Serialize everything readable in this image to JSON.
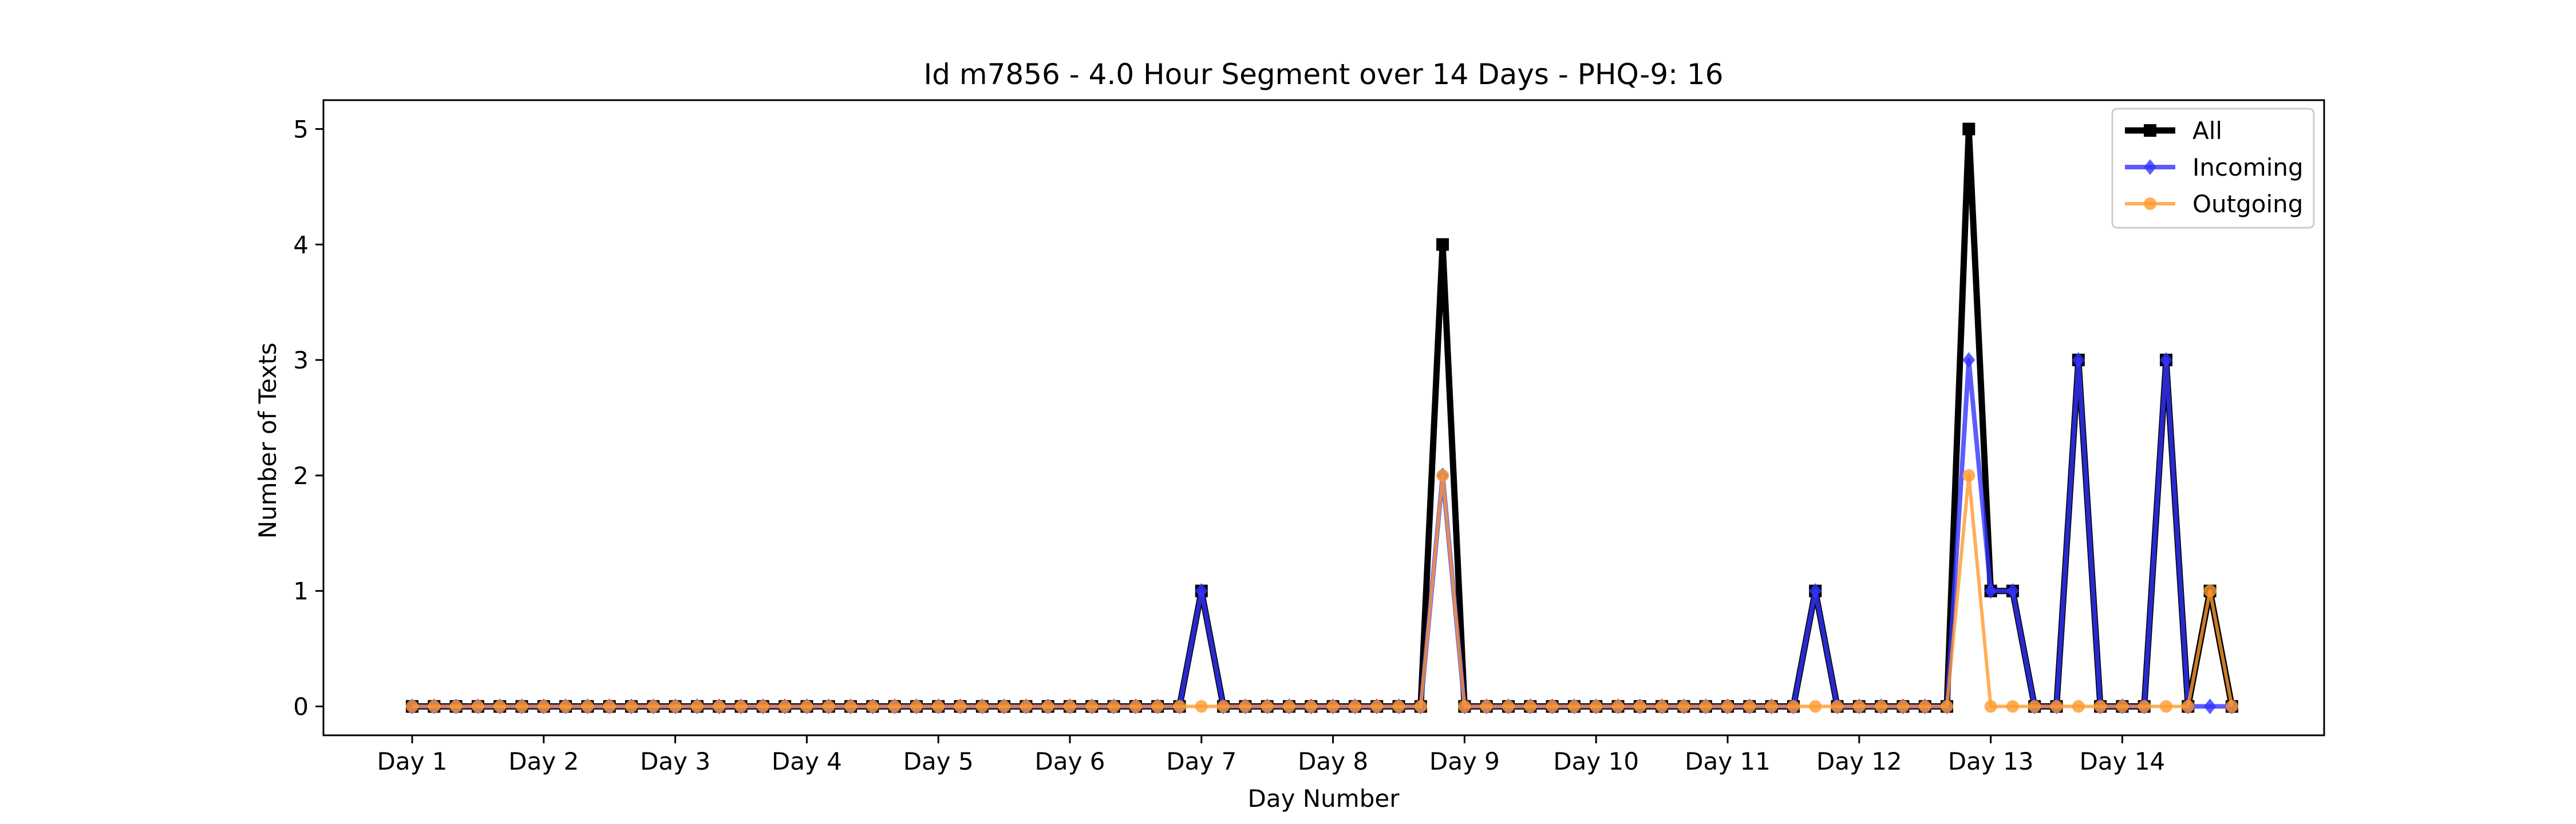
{
  "chart_data": {
    "type": "line",
    "title": "Id m7856 - 4.0 Hour Segment over 14 Days - PHQ-9: 16",
    "xlabel": "Day Number",
    "ylabel": "Number of Texts",
    "x_tick_labels": [
      "Day 1",
      "Day 2",
      "Day 3",
      "Day 4",
      "Day 5",
      "Day 6",
      "Day 7",
      "Day 8",
      "Day 9",
      "Day 10",
      "Day 11",
      "Day 12",
      "Day 13",
      "Day 14"
    ],
    "y_ticks": [
      0,
      1,
      2,
      3,
      4,
      5
    ],
    "ylim": [
      -0.25,
      5.25
    ],
    "legend_position": "top-right",
    "grid": false,
    "series": [
      {
        "name": "All",
        "color": "#000000",
        "marker": "square",
        "values": [
          0,
          0,
          0,
          0,
          0,
          0,
          0,
          0,
          0,
          0,
          0,
          0,
          0,
          0,
          0,
          0,
          0,
          0,
          0,
          0,
          0,
          0,
          0,
          0,
          0,
          0,
          0,
          0,
          0,
          0,
          0,
          0,
          0,
          0,
          0,
          0,
          1,
          0,
          0,
          0,
          0,
          0,
          0,
          0,
          0,
          0,
          0,
          4,
          0,
          0,
          0,
          0,
          0,
          0,
          0,
          0,
          0,
          0,
          0,
          0,
          0,
          0,
          0,
          0,
          1,
          0,
          0,
          0,
          0,
          0,
          0,
          5,
          1,
          1,
          0,
          0,
          3,
          0,
          0,
          0,
          3,
          0,
          1,
          0
        ]
      },
      {
        "name": "Incoming",
        "color": "#3333ff",
        "marker": "diamond",
        "values": [
          0,
          0,
          0,
          0,
          0,
          0,
          0,
          0,
          0,
          0,
          0,
          0,
          0,
          0,
          0,
          0,
          0,
          0,
          0,
          0,
          0,
          0,
          0,
          0,
          0,
          0,
          0,
          0,
          0,
          0,
          0,
          0,
          0,
          0,
          0,
          0,
          1,
          0,
          0,
          0,
          0,
          0,
          0,
          0,
          0,
          0,
          0,
          2,
          0,
          0,
          0,
          0,
          0,
          0,
          0,
          0,
          0,
          0,
          0,
          0,
          0,
          0,
          0,
          0,
          1,
          0,
          0,
          0,
          0,
          0,
          0,
          3,
          1,
          1,
          0,
          0,
          3,
          0,
          0,
          0,
          3,
          0,
          0,
          0
        ]
      },
      {
        "name": "Outgoing",
        "color": "#ff9a2e",
        "marker": "circle",
        "values": [
          0,
          0,
          0,
          0,
          0,
          0,
          0,
          0,
          0,
          0,
          0,
          0,
          0,
          0,
          0,
          0,
          0,
          0,
          0,
          0,
          0,
          0,
          0,
          0,
          0,
          0,
          0,
          0,
          0,
          0,
          0,
          0,
          0,
          0,
          0,
          0,
          0,
          0,
          0,
          0,
          0,
          0,
          0,
          0,
          0,
          0,
          0,
          2,
          0,
          0,
          0,
          0,
          0,
          0,
          0,
          0,
          0,
          0,
          0,
          0,
          0,
          0,
          0,
          0,
          0,
          0,
          0,
          0,
          0,
          0,
          0,
          2,
          0,
          0,
          0,
          0,
          0,
          0,
          0,
          0,
          0,
          0,
          1,
          0
        ]
      }
    ]
  }
}
